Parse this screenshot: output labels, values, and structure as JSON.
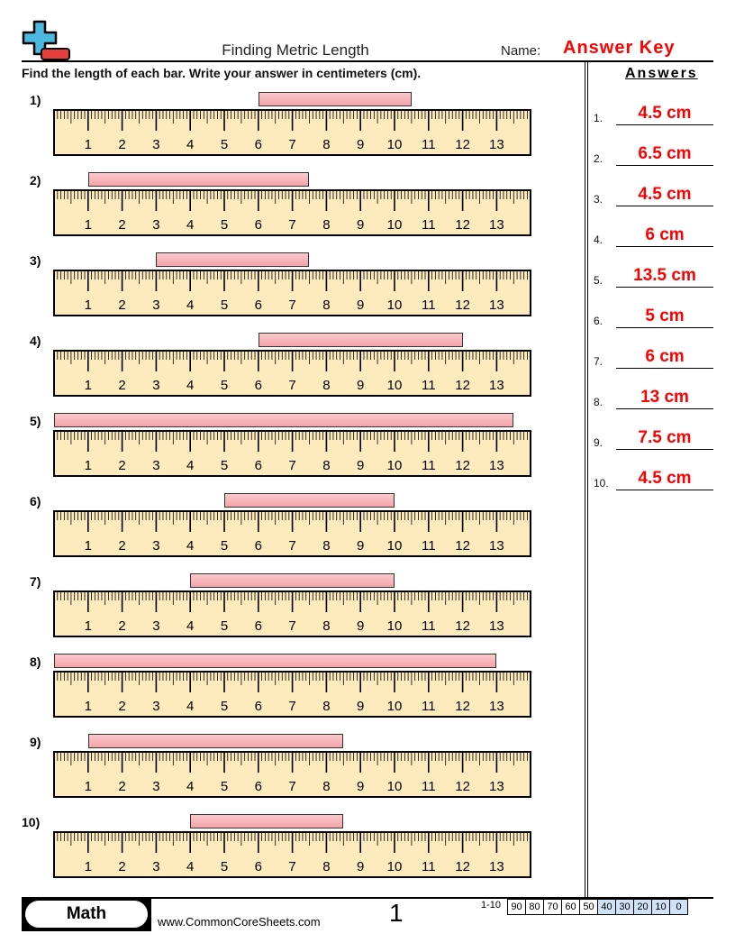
{
  "header": {
    "title": "Finding Metric Length",
    "name_label": "Name:",
    "name_value": "Answer Key"
  },
  "instructions": "Find the length of each bar. Write your answer in centimeters (cm).",
  "ruler": {
    "labels": [
      "1",
      "2",
      "3",
      "4",
      "5",
      "6",
      "7",
      "8",
      "9",
      "10",
      "11",
      "12",
      "13"
    ],
    "length_cm": 14,
    "color": "#fdebbd"
  },
  "problems": [
    {
      "label": "1)",
      "start_cm": 6,
      "end_cm": 10.5
    },
    {
      "label": "2)",
      "start_cm": 1,
      "end_cm": 7.5
    },
    {
      "label": "3)",
      "start_cm": 3,
      "end_cm": 7.5
    },
    {
      "label": "4)",
      "start_cm": 6,
      "end_cm": 12
    },
    {
      "label": "5)",
      "start_cm": 0,
      "end_cm": 13.5
    },
    {
      "label": "6)",
      "start_cm": 5,
      "end_cm": 10
    },
    {
      "label": "7)",
      "start_cm": 4,
      "end_cm": 10
    },
    {
      "label": "8)",
      "start_cm": 0,
      "end_cm": 13
    },
    {
      "label": "9)",
      "start_cm": 1,
      "end_cm": 8.5
    },
    {
      "label": "10)",
      "start_cm": 4,
      "end_cm": 8.5
    }
  ],
  "answers": {
    "title": "Answers",
    "items": [
      {
        "num": "1.",
        "value": "4.5 cm"
      },
      {
        "num": "2.",
        "value": "6.5 cm"
      },
      {
        "num": "3.",
        "value": "4.5 cm"
      },
      {
        "num": "4.",
        "value": "6 cm"
      },
      {
        "num": "5.",
        "value": "13.5 cm"
      },
      {
        "num": "6.",
        "value": "5 cm"
      },
      {
        "num": "7.",
        "value": "6 cm"
      },
      {
        "num": "8.",
        "value": "13 cm"
      },
      {
        "num": "9.",
        "value": "7.5 cm"
      },
      {
        "num": "10.",
        "value": "4.5 cm"
      }
    ]
  },
  "footer": {
    "subject": "Math",
    "site": "www.CommonCoreSheets.com",
    "page": "1",
    "score_label": "1-10",
    "scores": [
      "90",
      "80",
      "70",
      "60",
      "50",
      "40",
      "30",
      "20",
      "10",
      "0"
    ],
    "score_highlight_color": "#cfe2f8"
  }
}
